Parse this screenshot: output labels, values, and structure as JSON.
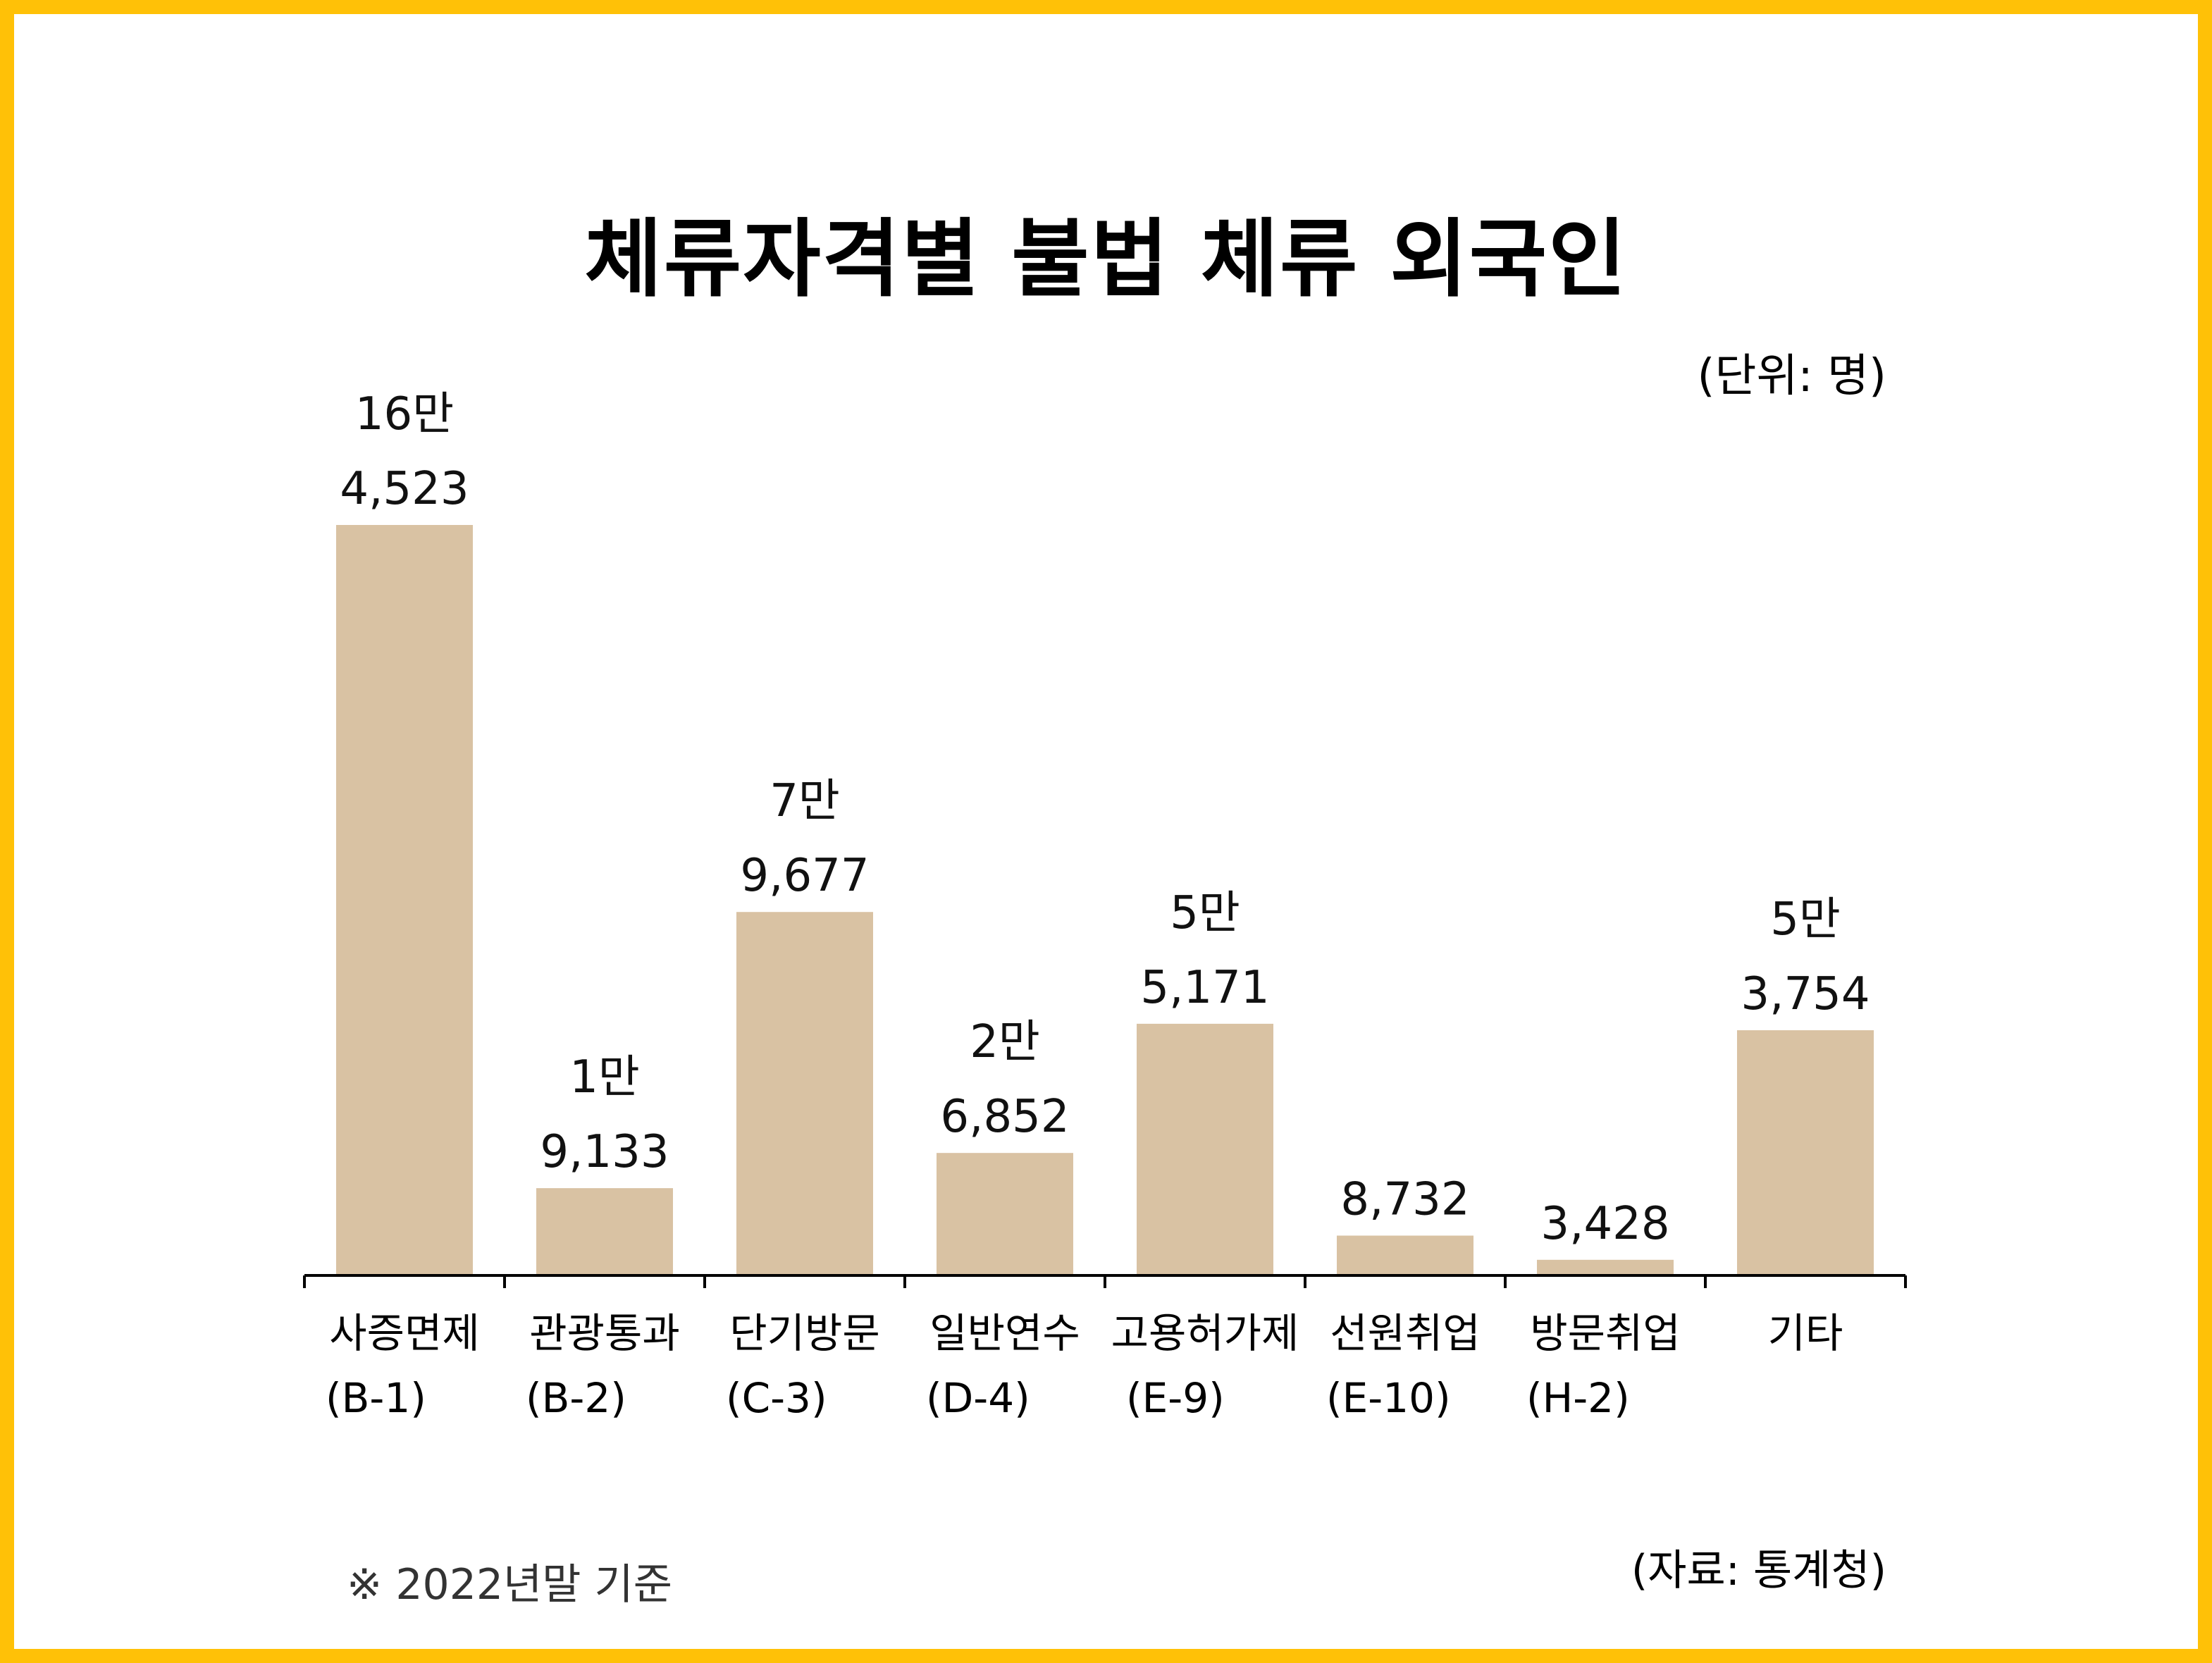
{
  "header": {
    "title": "체류자격별 불법 체류 외국인",
    "unit": "(단위: 명)"
  },
  "chart_data": {
    "type": "bar",
    "title": "체류자격별 불법 체류 외국인",
    "ylabel": "",
    "xlabel": "",
    "unit": "명",
    "categories": [
      [
        "사증면제",
        "(B-1)"
      ],
      [
        "관광통과",
        "(B-2)"
      ],
      [
        "단기방문",
        "(C-3)"
      ],
      [
        "일반연수",
        "(D-4)"
      ],
      [
        "고용허가제",
        "(E-9)"
      ],
      [
        "선원취업",
        "(E-10)"
      ],
      [
        "방문취업",
        "(H-2)"
      ],
      [
        "기타",
        ""
      ]
    ],
    "values": [
      164523,
      19133,
      79677,
      26852,
      55171,
      8732,
      3428,
      53754
    ],
    "data_labels": [
      [
        "16만",
        "4,523"
      ],
      [
        "1만",
        "9,133"
      ],
      [
        "7만",
        "9,677"
      ],
      [
        "2만",
        "6,852"
      ],
      [
        "5만",
        "5,171"
      ],
      [
        "",
        "8,732"
      ],
      [
        "",
        "3,428"
      ],
      [
        "5만",
        "3,754"
      ]
    ],
    "ylim": [
      0,
      164523
    ],
    "grid": false,
    "legend": "none"
  },
  "footer": {
    "note": "※ 2022년말 기준",
    "source": "(자료: 통계청)"
  },
  "colors": {
    "frame": "#ffc107",
    "bar": "#d9c2a3",
    "axis": "#000000"
  }
}
